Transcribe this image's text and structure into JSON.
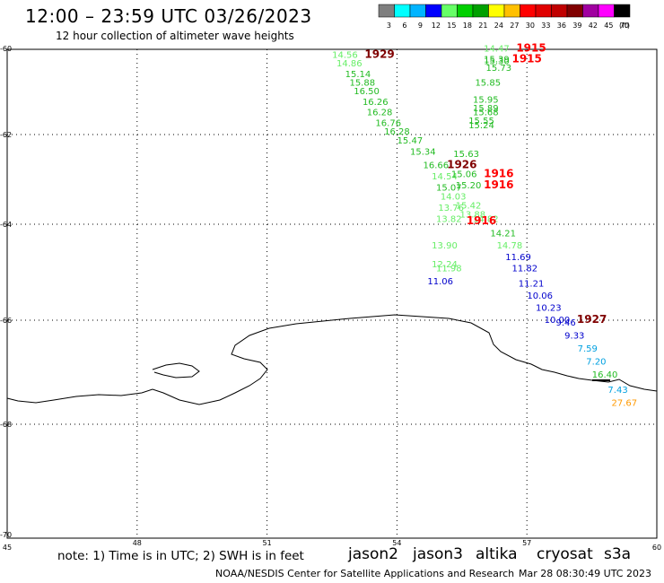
{
  "header": {
    "title": "12:00 – 23:59 UTC 03/26/2023",
    "subtitle": "12 hour collection of altimeter wave heights"
  },
  "colorbar": {
    "unit": "(ft)",
    "bins": [
      {
        "label": "3",
        "color": "#7f7f7f"
      },
      {
        "label": "6",
        "color": "#00ffff"
      },
      {
        "label": "9",
        "color": "#00b4ff"
      },
      {
        "label": "12",
        "color": "#0000ff"
      },
      {
        "label": "15",
        "color": "#66ff66"
      },
      {
        "label": "18",
        "color": "#00d000"
      },
      {
        "label": "21",
        "color": "#00a000"
      },
      {
        "label": "24",
        "color": "#ffff00"
      },
      {
        "label": "27",
        "color": "#ffc000"
      },
      {
        "label": "30",
        "color": "#ff0000"
      },
      {
        "label": "33",
        "color": "#e00000"
      },
      {
        "label": "36",
        "color": "#c00000"
      },
      {
        "label": "39",
        "color": "#800000"
      },
      {
        "label": "42",
        "color": "#a000a0"
      },
      {
        "label": "45",
        "color": "#ff00ff"
      },
      {
        "label": "70",
        "color": "#000000"
      }
    ]
  },
  "axes": {
    "lon_labels": [
      "45",
      "48",
      "51",
      "54",
      "57",
      "60"
    ],
    "lat_labels": [
      "-60",
      "-62",
      "-64",
      "-66",
      "-68",
      "-70"
    ]
  },
  "footer": {
    "note": "note:  1) Time is in UTC;  2) SWH is in feet",
    "satellites": [
      {
        "name": "jason2",
        "color": "#0000cc"
      },
      {
        "name": "jason3",
        "color": "#009900"
      },
      {
        "name": "altika",
        "color": "#ff9900"
      },
      {
        "name": "cryosat",
        "color": "#cc0000"
      },
      {
        "name": "s3a",
        "color": "#990000"
      }
    ],
    "credit": "NOAA/NESDIS Center for Satellite Applications and Research",
    "timestamp": "Mar 28 08:30:49 UTC 2023"
  },
  "map": {
    "track_points": [
      {
        "t": "14.56",
        "c": "#66ee66",
        "lon": 52.8,
        "lat": -60.2
      },
      {
        "t": "14.86",
        "c": "#66ee66",
        "lon": 52.9,
        "lat": -60.4
      },
      {
        "t": "15.14",
        "c": "#22bb22",
        "lon": 53.1,
        "lat": -60.65
      },
      {
        "t": "15.88",
        "c": "#22bb22",
        "lon": 53.2,
        "lat": -60.85
      },
      {
        "t": "16.50",
        "c": "#22bb22",
        "lon": 53.3,
        "lat": -61.05
      },
      {
        "t": "16.26",
        "c": "#22bb22",
        "lon": 53.5,
        "lat": -61.3
      },
      {
        "t": "16.28",
        "c": "#22bb22",
        "lon": 53.6,
        "lat": -61.55
      },
      {
        "t": "16.76",
        "c": "#22bb22",
        "lon": 53.8,
        "lat": -61.8
      },
      {
        "t": "16.28",
        "c": "#22bb22",
        "lon": 54.0,
        "lat": -62.0
      },
      {
        "t": "15.47",
        "c": "#22bb22",
        "lon": 54.3,
        "lat": -62.2
      },
      {
        "t": "15.34",
        "c": "#22bb22",
        "lon": 54.6,
        "lat": -62.45
      },
      {
        "t": "16.66",
        "c": "#22bb22",
        "lon": 54.9,
        "lat": -62.75
      },
      {
        "t": "14.54",
        "c": "#66ee66",
        "lon": 55.1,
        "lat": -63.0
      },
      {
        "t": "15.07",
        "c": "#22bb22",
        "lon": 55.2,
        "lat": -63.25
      },
      {
        "t": "14.03",
        "c": "#66ee66",
        "lon": 55.3,
        "lat": -63.45
      },
      {
        "t": "13.76",
        "c": "#66ee66",
        "lon": 55.25,
        "lat": -63.7
      },
      {
        "t": "13.82",
        "c": "#66ee66",
        "lon": 55.2,
        "lat": -63.95
      },
      {
        "t": "13.90",
        "c": "#66ee66",
        "lon": 55.1,
        "lat": -64.5
      },
      {
        "t": "12.24",
        "c": "#66ee66",
        "lon": 55.1,
        "lat": -64.9
      },
      {
        "t": "11.98",
        "c": "#66ee66",
        "lon": 55.2,
        "lat": -64.98
      },
      {
        "t": "11.06",
        "c": "#0000cc",
        "lon": 55.0,
        "lat": -65.25
      },
      {
        "t": "14.47",
        "c": "#66ee66",
        "lon": 56.3,
        "lat": -60.05
      },
      {
        "t": "15.39",
        "c": "#22bb22",
        "lon": 56.3,
        "lat": -60.3
      },
      {
        "t": "15.30",
        "c": "#22bb22",
        "lon": 56.3,
        "lat": -60.35
      },
      {
        "t": "15.73",
        "c": "#22bb22",
        "lon": 56.35,
        "lat": -60.5
      },
      {
        "t": "15.85",
        "c": "#22bb22",
        "lon": 56.1,
        "lat": -60.85
      },
      {
        "t": "15.95",
        "c": "#22bb22",
        "lon": 56.05,
        "lat": -61.25
      },
      {
        "t": "15.89",
        "c": "#22bb22",
        "lon": 56.05,
        "lat": -61.45
      },
      {
        "t": "15.68",
        "c": "#22bb22",
        "lon": 56.05,
        "lat": -61.55
      },
      {
        "t": "15.55",
        "c": "#22bb22",
        "lon": 55.95,
        "lat": -61.75
      },
      {
        "t": "15.24",
        "c": "#22bb22",
        "lon": 55.95,
        "lat": -61.85
      },
      {
        "t": "15.63",
        "c": "#22bb22",
        "lon": 55.6,
        "lat": -62.5
      },
      {
        "t": "15.06",
        "c": "#22bb22",
        "lon": 55.55,
        "lat": -62.95
      },
      {
        "t": "15.20",
        "c": "#22bb22",
        "lon": 55.65,
        "lat": -63.2
      },
      {
        "t": "15.42",
        "c": "#66ee66",
        "lon": 55.65,
        "lat": -63.65
      },
      {
        "t": "13.88",
        "c": "#66ee66",
        "lon": 55.75,
        "lat": -63.85
      },
      {
        "t": "14.82",
        "c": "#66ee66",
        "lon": 56.05,
        "lat": -63.95
      },
      {
        "t": "14.21",
        "c": "#22bb22",
        "lon": 56.45,
        "lat": -64.25
      },
      {
        "t": "14.78",
        "c": "#66ee66",
        "lon": 56.6,
        "lat": -64.5
      },
      {
        "t": "11.69",
        "c": "#0000cc",
        "lon": 56.8,
        "lat": -64.75
      },
      {
        "t": "11.82",
        "c": "#0000cc",
        "lon": 56.95,
        "lat": -64.98
      },
      {
        "t": "11.21",
        "c": "#0000cc",
        "lon": 57.1,
        "lat": -65.3
      },
      {
        "t": "10.06",
        "c": "#0000cc",
        "lon": 57.3,
        "lat": -65.55
      },
      {
        "t": "10.23",
        "c": "#0000cc",
        "lon": 57.5,
        "lat": -65.8
      },
      {
        "t": "10.00",
        "c": "#0000cc",
        "lon": 57.7,
        "lat": -66.05
      },
      {
        "t": "9.46",
        "c": "#0000cc",
        "lon": 57.9,
        "lat": -66.1
      },
      {
        "t": "9.33",
        "c": "#0000cc",
        "lon": 58.1,
        "lat": -66.35
      },
      {
        "t": "7.59",
        "c": "#00a0e0",
        "lon": 58.4,
        "lat": -66.6
      },
      {
        "t": "7.20",
        "c": "#00a0e0",
        "lon": 58.6,
        "lat": -66.85
      },
      {
        "t": "16.40",
        "c": "#22bb22",
        "lon": 58.8,
        "lat": -67.1
      },
      {
        "t": "7.43",
        "c": "#00a0e0",
        "lon": 59.1,
        "lat": -67.4
      },
      {
        "t": "27.67",
        "c": "#ff9900",
        "lon": 59.25,
        "lat": -67.65
      }
    ],
    "cycle_labels": [
      {
        "t": "1929",
        "c": "#800000",
        "lon": 53.6,
        "lat": -60.2
      },
      {
        "t": "1915",
        "c": "#ff0000",
        "lon": 57.1,
        "lat": -60.05
      },
      {
        "t": "1915",
        "c": "#ff0000",
        "lon": 57.0,
        "lat": -60.3
      },
      {
        "t": "1926",
        "c": "#800000",
        "lon": 55.5,
        "lat": -62.75
      },
      {
        "t": "1916",
        "c": "#ff0000",
        "lon": 56.35,
        "lat": -62.95
      },
      {
        "t": "1916",
        "c": "#ff0000",
        "lon": 56.35,
        "lat": -63.2
      },
      {
        "t": "1916",
        "c": "#ff0000",
        "lon": 55.95,
        "lat": -64.0
      },
      {
        "t": "1927",
        "c": "#800000",
        "lon": 58.5,
        "lat": -66.05
      }
    ]
  }
}
